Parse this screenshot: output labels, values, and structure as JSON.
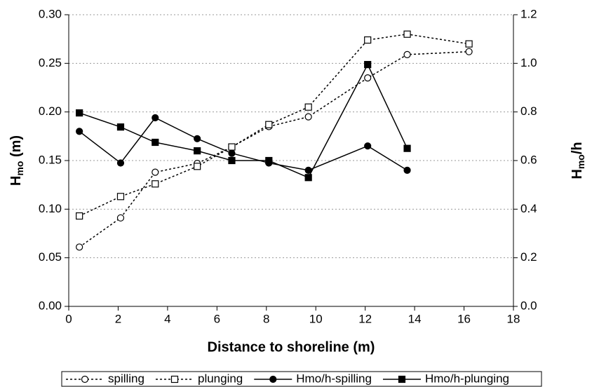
{
  "chart_data": {
    "type": "line",
    "xlabel": "Distance to shoreline (m)",
    "ylabel_parts": [
      "H",
      "mo",
      " (m)"
    ],
    "y2label_parts": [
      "H",
      "mo",
      "/h"
    ],
    "x": [
      0.43,
      2.1,
      3.5,
      5.2,
      6.6,
      8.1,
      9.7,
      12.1,
      13.7,
      16.2
    ],
    "series": [
      {
        "name": "spilling",
        "color": "#000000",
        "line_style": "dotted",
        "marker": "circle",
        "filled": false,
        "values": [
          0.061,
          0.091,
          0.138,
          0.147,
          0.164,
          0.185,
          0.195,
          0.235,
          0.259,
          0.262
        ]
      },
      {
        "name": "plunging",
        "color": "#000000",
        "line_style": "dotted",
        "marker": "square",
        "filled": false,
        "values": [
          0.093,
          0.113,
          0.126,
          0.144,
          0.164,
          0.187,
          0.205,
          0.274,
          0.28,
          0.27
        ]
      },
      {
        "name": "Hmo/h-spilling",
        "color": "#000000",
        "line_style": "solid",
        "marker": "circle",
        "filled": true,
        "axis": "y2",
        "values": [
          0.72,
          0.59,
          0.776,
          0.69,
          0.63,
          0.59,
          0.56,
          0.66,
          0.56,
          null
        ]
      },
      {
        "name": "Hmo/h-plunging",
        "color": "#000000",
        "line_style": "solid",
        "marker": "square",
        "filled": true,
        "axis": "y2",
        "values": [
          0.796,
          0.738,
          0.675,
          0.64,
          0.6,
          0.6,
          0.53,
          0.995,
          0.65,
          null
        ]
      }
    ],
    "xlim": [
      0,
      18
    ],
    "xticks": [
      0,
      2,
      4,
      6,
      8,
      10,
      12,
      14,
      16,
      18
    ],
    "ylim": [
      0,
      0.3
    ],
    "yticks": [
      {
        "value": 0,
        "label": "0.00"
      },
      0.05,
      {
        "value": 0.1,
        "label": "0.10"
      },
      0.15,
      {
        "value": 0.2,
        "label": "0.20"
      },
      0.25,
      {
        "value": 0.3,
        "label": "0.30"
      }
    ],
    "y2lim": [
      0,
      1.2
    ],
    "y2ticks": [
      {
        "value": 0,
        "label": "0.0"
      },
      0.2,
      0.4,
      0.6,
      0.8,
      {
        "value": 1,
        "label": "1.0"
      },
      1.2
    ],
    "grid": true,
    "legend": "bottom"
  }
}
